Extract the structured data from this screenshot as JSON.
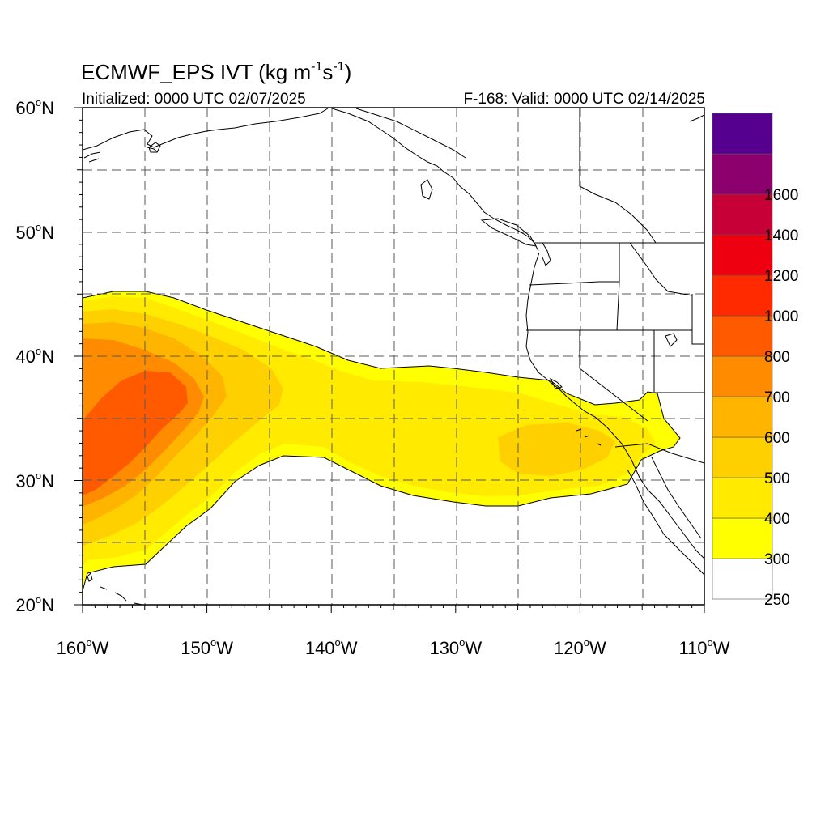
{
  "header": {
    "title_main": "ECMWF_EPS IVT (kg m",
    "title_sup1": "-1",
    "title_mid": "s",
    "title_sup2": "-1",
    "title_end": ")",
    "initialized": "Initialized: 0000 UTC 02/07/2025",
    "valid": "F-168: Valid: 0000 UTC 02/14/2025"
  },
  "map": {
    "lat_labels": [
      "60",
      "50",
      "40",
      "30",
      "20"
    ],
    "lon_labels": [
      "160",
      "150",
      "140",
      "130",
      "120",
      "110"
    ],
    "lat_suffix": "N",
    "lon_suffix": "W",
    "degree_symbol": "o",
    "lat_range": [
      20,
      60
    ],
    "lon_range": [
      -160,
      -110
    ],
    "grid": true,
    "background_color": "#ffffff",
    "coastline_color": "#000000"
  },
  "colorbar": {
    "placement": "right",
    "bins": [
      {
        "color": "#ffffff",
        "label": "250"
      },
      {
        "color": "#ffff00",
        "label": "300"
      },
      {
        "color": "#ffea00",
        "label": "400"
      },
      {
        "color": "#ffd000",
        "label": "500"
      },
      {
        "color": "#ffb400",
        "label": "600"
      },
      {
        "color": "#ff8c00",
        "label": "700"
      },
      {
        "color": "#ff5a00",
        "label": "800"
      },
      {
        "color": "#ff2a00",
        "label": "1000"
      },
      {
        "color": "#ee0010",
        "label": "1200"
      },
      {
        "color": "#c80038",
        "label": "1400"
      },
      {
        "color": "#8c006e",
        "label": "1600"
      },
      {
        "color": "#55008e",
        "label": ""
      }
    ]
  },
  "plume_colors": {
    "lt250": "#ffff00",
    "c250": "#ffff00",
    "c300": "#ffea00",
    "c400": "#ffd000",
    "c500": "#ffb400",
    "c600": "#ff8c00",
    "c700": "#ff5a00"
  }
}
